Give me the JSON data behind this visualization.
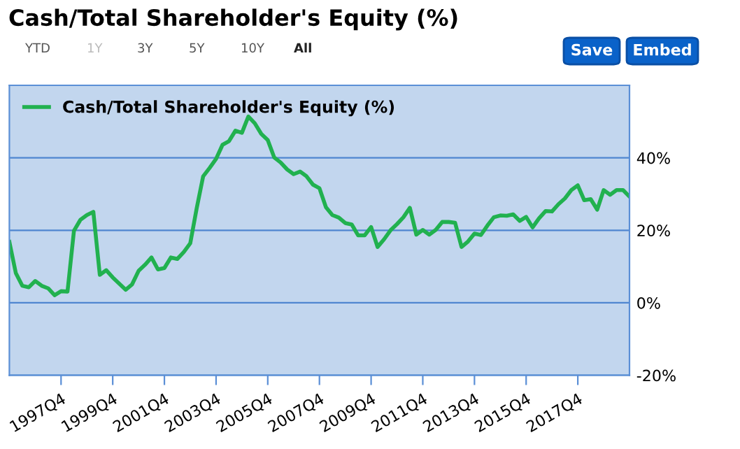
{
  "chart_data": {
    "type": "line",
    "title": "Cash/Total Shareholder's Equity (%)",
    "annotations": [
      "YTD",
      "1Y",
      "3Y",
      "5Y",
      "10Y",
      "All",
      "Save",
      "Embed"
    ],
    "categories": [
      null,
      null,
      null,
      null,
      null,
      null,
      null,
      null,
      "1997Q4",
      null,
      null,
      null,
      null,
      null,
      null,
      null,
      "1999Q4",
      null,
      null,
      null,
      null,
      null,
      null,
      null,
      "2001Q4",
      null,
      null,
      null,
      null,
      null,
      null,
      null,
      "2003Q4",
      null,
      null,
      null,
      null,
      null,
      null,
      null,
      "2005Q4",
      null,
      null,
      null,
      null,
      null,
      null,
      null,
      "2007Q4",
      null,
      null,
      null,
      null,
      null,
      null,
      null,
      "2009Q4",
      null,
      null,
      null,
      null,
      null,
      null,
      null,
      "2011Q4",
      null,
      null,
      null,
      null,
      null,
      null,
      null,
      "2013Q4",
      null,
      null,
      null,
      null,
      null,
      null,
      null,
      "2015Q4",
      null,
      null,
      null,
      null,
      null,
      null,
      null,
      "2017Q4",
      null,
      null,
      null,
      null,
      null,
      null,
      null,
      null
    ],
    "series": [
      {
        "name": "Cash/Total Shareholder's Equity (%)",
        "color": "#21b14f",
        "values": [
          16.8,
          8.2,
          4.7,
          4.3,
          6.0,
          4.7,
          4.0,
          2.1,
          3.2,
          3.1,
          19.9,
          22.9,
          24.2,
          25.1,
          7.7,
          9.0,
          7.0,
          5.3,
          3.6,
          5.1,
          8.8,
          10.5,
          12.5,
          9.2,
          9.6,
          12.5,
          12.1,
          14.0,
          16.4,
          26.1,
          34.9,
          37.2,
          39.7,
          43.6,
          44.6,
          47.5,
          46.9,
          51.4,
          49.5,
          46.6,
          44.9,
          40.1,
          38.7,
          36.8,
          35.5,
          36.2,
          34.9,
          32.6,
          31.6,
          26.4,
          24.2,
          23.5,
          22.0,
          21.6,
          18.6,
          18.6,
          20.9,
          15.4,
          17.5,
          20.0,
          21.7,
          23.6,
          26.2,
          18.8,
          20.1,
          18.8,
          20.1,
          22.3,
          22.3,
          22.1,
          15.4,
          16.9,
          19.1,
          18.7,
          21.3,
          23.6,
          24.1,
          24.0,
          24.4,
          22.6,
          23.7,
          20.8,
          23.3,
          25.3,
          25.2,
          27.2,
          28.8,
          31.1,
          32.4,
          28.3,
          28.6,
          25.7,
          31.1,
          29.8,
          31.1,
          31.1,
          29.3
        ]
      }
    ],
    "ylim": [
      -20,
      60
    ],
    "yticks": [
      {
        "value": -20,
        "label": "-20%"
      },
      {
        "value": 0,
        "label": "0%"
      },
      {
        "value": 20,
        "label": "20%"
      },
      {
        "value": 40,
        "label": "40%"
      }
    ],
    "grid": "y",
    "legend": "top left",
    "marker": "none",
    "line_style": "solid"
  }
}
